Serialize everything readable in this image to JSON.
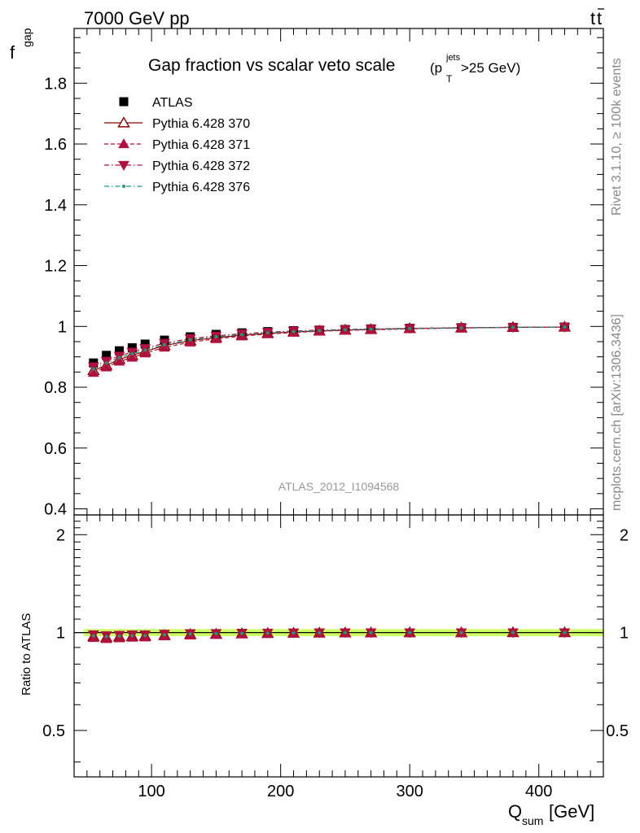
{
  "header": {
    "left": "7000 GeV pp",
    "right_main": "t",
    "right_bar": "t"
  },
  "side_text": {
    "rivet": "Rivet 3.1.10, ≥ 100k events",
    "mcplots": "mcplots.cern.ch [arXiv:1306.3436]"
  },
  "chart_data": [
    {
      "type": "scatter",
      "title": "Gap fraction vs scalar veto scale",
      "title_suffix": {
        "open": "(p",
        "sup": "jets",
        "sub": "T",
        "close": ">25 GeV)"
      },
      "ylabel": {
        "main": "f",
        "sub": "gap"
      },
      "xlim": [
        40,
        450
      ],
      "ylim": [
        0.38,
        1.98
      ],
      "y_ticks": [
        "0.4",
        "0.6",
        "0.8",
        "1",
        "1.2",
        "1.4",
        "1.6",
        "1.8"
      ],
      "watermark": "ATLAS_2012_I1094568",
      "x": [
        55,
        65,
        75,
        85,
        95,
        110,
        130,
        150,
        170,
        190,
        210,
        230,
        250,
        270,
        300,
        340,
        380,
        420
      ],
      "series": [
        {
          "name": "ATLAS",
          "marker": "square",
          "color": "#000000",
          "values": [
            0.88,
            0.905,
            0.92,
            0.93,
            0.942,
            0.955,
            0.966,
            0.974,
            0.979,
            0.983,
            0.986,
            0.988,
            0.99,
            0.992,
            0.994,
            0.996,
            0.997,
            0.998
          ]
        },
        {
          "name": "Pythia 6.428 370",
          "marker": "triangle-up-open",
          "line": "solid",
          "color": "#8b0000",
          "values": [
            0.855,
            0.872,
            0.892,
            0.905,
            0.918,
            0.937,
            0.953,
            0.963,
            0.971,
            0.977,
            0.982,
            0.985,
            0.988,
            0.99,
            0.993,
            0.995,
            0.997,
            0.998
          ]
        },
        {
          "name": "Pythia 6.428 371",
          "marker": "triangle-up",
          "line": "dashed",
          "color": "#b0103e",
          "values": [
            0.848,
            0.866,
            0.885,
            0.898,
            0.912,
            0.931,
            0.948,
            0.959,
            0.968,
            0.975,
            0.98,
            0.984,
            0.987,
            0.989,
            0.992,
            0.995,
            0.997,
            0.998
          ]
        },
        {
          "name": "Pythia 6.428 372",
          "marker": "triangle-down",
          "line": "dashdot",
          "color": "#b0103e",
          "values": [
            0.868,
            0.886,
            0.903,
            0.916,
            0.928,
            0.945,
            0.96,
            0.969,
            0.976,
            0.981,
            0.985,
            0.988,
            0.99,
            0.992,
            0.994,
            0.996,
            0.997,
            0.998
          ]
        },
        {
          "name": "Pythia 6.428 376",
          "marker": "dot",
          "line": "dashdot",
          "color": "#1a9a7a",
          "values": [
            0.86,
            0.88,
            0.897,
            0.91,
            0.922,
            0.94,
            0.956,
            0.966,
            0.973,
            0.979,
            0.983,
            0.986,
            0.989,
            0.991,
            0.993,
            0.995,
            0.997,
            0.998
          ]
        }
      ]
    },
    {
      "type": "scatter",
      "ylabel": "Ratio to ATLAS",
      "xlabel": {
        "main": "Q",
        "sub": "sum",
        "unit": " [GeV]"
      },
      "xlim": [
        40,
        450
      ],
      "ylim": [
        0.36,
        2.3
      ],
      "y_scale": "log",
      "y_ticks": [
        "0.5",
        "1",
        "2"
      ],
      "x_ticks": [
        "100",
        "200",
        "300",
        "400"
      ],
      "reference_band_color": "#ccff66",
      "x": [
        55,
        65,
        75,
        85,
        95,
        110,
        130,
        150,
        170,
        190,
        210,
        230,
        250,
        270,
        300,
        340,
        380,
        420
      ],
      "series": [
        {
          "name": "Pythia 6.428 370",
          "marker": "triangle-up-open",
          "color": "#8b0000",
          "values": [
            0.972,
            0.964,
            0.97,
            0.973,
            0.975,
            0.981,
            0.987,
            0.989,
            0.992,
            0.994,
            0.996,
            0.997,
            0.998,
            0.998,
            0.999,
            0.999,
            1.0,
            1.0
          ]
        },
        {
          "name": "Pythia 6.428 371",
          "marker": "triangle-up",
          "color": "#b0103e",
          "values": [
            0.964,
            0.957,
            0.962,
            0.966,
            0.968,
            0.975,
            0.981,
            0.985,
            0.989,
            0.992,
            0.994,
            0.996,
            0.997,
            0.997,
            0.998,
            0.999,
            1.0,
            1.0
          ]
        },
        {
          "name": "Pythia 6.428 372",
          "marker": "triangle-down",
          "color": "#b0103e",
          "values": [
            0.986,
            0.979,
            0.982,
            0.985,
            0.985,
            0.99,
            0.994,
            0.995,
            0.997,
            0.998,
            0.999,
            1.0,
            1.0,
            1.0,
            1.0,
            1.0,
            1.0,
            1.0
          ]
        },
        {
          "name": "Pythia 6.428 376",
          "marker": "dot",
          "color": "#1a9a7a",
          "values": [
            0.977,
            0.972,
            0.975,
            0.978,
            0.979,
            0.984,
            0.99,
            0.992,
            0.994,
            0.996,
            0.997,
            0.998,
            0.999,
            0.999,
            0.999,
            0.999,
            1.0,
            1.0
          ]
        }
      ]
    }
  ]
}
